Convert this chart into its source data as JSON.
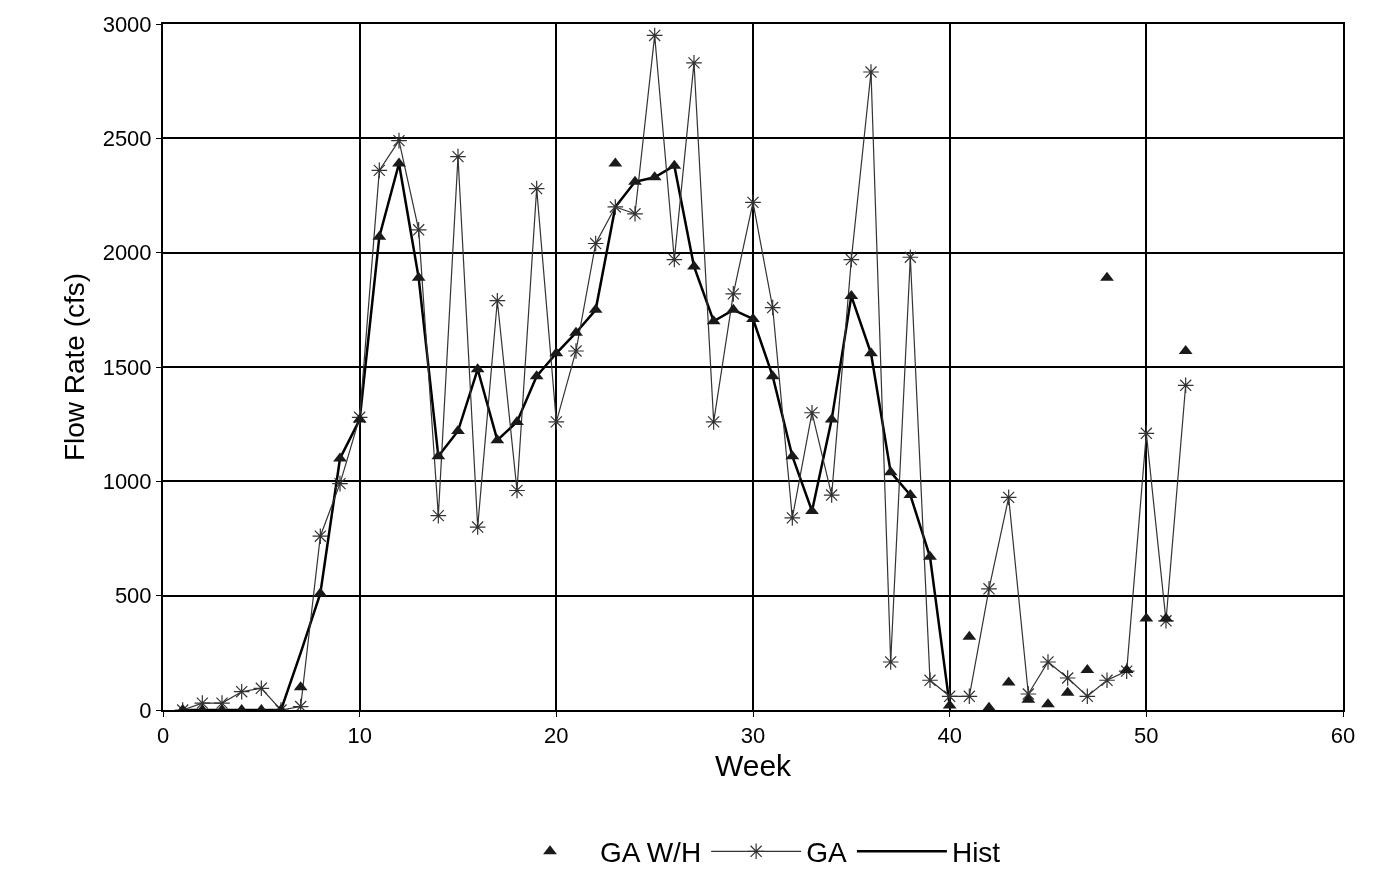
{
  "chart_data": {
    "type": "line",
    "xlabel": "Week",
    "ylabel": "Flow Rate (cfs)",
    "xlim": [
      0,
      60
    ],
    "xticks": [
      0,
      10,
      20,
      30,
      40,
      50,
      60
    ],
    "ylim": [
      0,
      3000
    ],
    "yticks": [
      0,
      500,
      1000,
      1500,
      2000,
      2500,
      3000
    ],
    "grid": true,
    "legend": "bottom",
    "x": [
      1,
      2,
      3,
      4,
      5,
      6,
      7,
      8,
      9,
      10,
      11,
      12,
      13,
      14,
      15,
      16,
      17,
      18,
      19,
      20,
      21,
      22,
      23,
      24,
      25,
      26,
      27,
      28,
      29,
      30,
      31,
      32,
      33,
      34,
      35,
      36,
      37,
      38,
      39,
      40,
      41,
      42,
      43,
      44,
      45,
      46,
      47,
      48,
      49,
      50,
      51,
      52
    ],
    "series": [
      {
        "name": "GA W/H",
        "type": "scatter",
        "marker": "triangle",
        "color": "#1a1a1a",
        "values": [
          0,
          0,
          0,
          0,
          0,
          0,
          100,
          510,
          1100,
          1270,
          2070,
          2390,
          1890,
          1110,
          1220,
          1490,
          1180,
          1260,
          1460,
          1560,
          1650,
          1750,
          2390,
          2310,
          2330,
          2380,
          1940,
          1700,
          1750,
          1710,
          1460,
          1110,
          870,
          1270,
          1810,
          1560,
          1040,
          940,
          670,
          20,
          320,
          10,
          120,
          45,
          25,
          75,
          175,
          1890,
          175,
          400,
          400,
          1570
        ]
      },
      {
        "name": "GA",
        "marker": "cross",
        "line_style": "solid",
        "color": "#333333",
        "values": [
          0,
          30,
          30,
          80,
          95,
          0,
          15,
          760,
          990,
          1280,
          2360,
          2490,
          2100,
          850,
          2420,
          800,
          1790,
          960,
          2280,
          1260,
          1570,
          2040,
          2200,
          2170,
          2950,
          1970,
          2830,
          1260,
          1820,
          2220,
          1760,
          840,
          1300,
          940,
          1970,
          2790,
          210,
          1980,
          130,
          60,
          60,
          530,
          930,
          70,
          210,
          140,
          60,
          130,
          170,
          1210,
          390,
          1420
        ]
      },
      {
        "name": "Hist",
        "marker": "none",
        "line_style": "solid",
        "color": "#000000",
        "values": [
          0,
          0,
          0,
          0,
          0,
          0,
          250,
          510,
          1100,
          1270,
          2070,
          2390,
          1890,
          1110,
          1220,
          1490,
          1180,
          1260,
          1460,
          1560,
          1650,
          1750,
          2200,
          2310,
          2330,
          2380,
          1940,
          1700,
          1750,
          1710,
          1460,
          1110,
          870,
          1270,
          1810,
          1560,
          1040,
          940,
          670,
          20,
          null,
          null,
          null,
          null,
          null,
          null,
          null,
          null,
          null,
          null,
          null,
          null
        ]
      }
    ]
  }
}
